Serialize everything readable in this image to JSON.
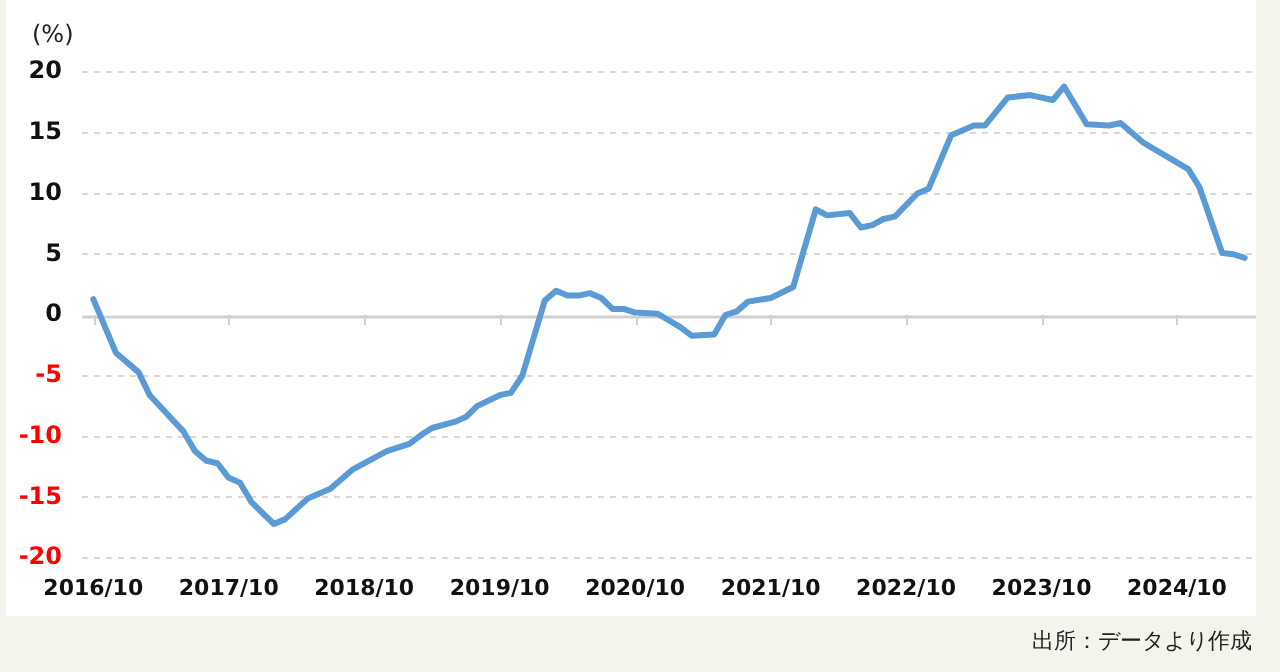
{
  "chart_data": {
    "type": "line",
    "ylabel": "(%)",
    "annotations": [
      "出所：データより作成"
    ],
    "x": [
      "2016-10",
      "2016-12",
      "2017-02",
      "2017-03",
      "2017-06",
      "2017-07",
      "2017-08",
      "2017-09",
      "2017-10",
      "2017-11",
      "2017-12",
      "2018-02",
      "2018-03",
      "2018-05",
      "2018-07",
      "2018-09",
      "2018-12",
      "2019-02",
      "2019-03",
      "2019-04",
      "2019-06",
      "2019-07",
      "2019-08",
      "2019-10",
      "2019-11",
      "2019-12",
      "2020-02",
      "2020-03",
      "2020-04",
      "2020-05",
      "2020-06",
      "2020-07",
      "2020-08",
      "2020-09",
      "2020-10",
      "2020-12",
      "2021-02",
      "2021-03",
      "2021-05",
      "2021-06",
      "2021-07",
      "2021-08",
      "2021-10",
      "2021-12",
      "2022-02",
      "2022-03",
      "2022-05",
      "2022-06",
      "2022-07",
      "2022-08",
      "2022-09",
      "2022-11",
      "2022-12",
      "2023-02",
      "2023-04",
      "2023-05",
      "2023-07",
      "2023-09",
      "2023-11",
      "2023-12",
      "2024-02",
      "2024-04",
      "2024-05",
      "2024-07",
      "2024-09",
      "2024-11",
      "2024-12",
      "2025-02",
      "2025-03",
      "2025-04"
    ],
    "series": [
      {
        "color": "#5b9bd5",
        "values": [
          1.3,
          -3.1,
          -4.7,
          -6.6,
          -9.6,
          -11.2,
          -12.0,
          -12.2,
          -13.4,
          -13.8,
          -15.4,
          -17.2,
          -16.8,
          -15.1,
          -14.3,
          -12.7,
          -11.2,
          -10.6,
          -9.9,
          -9.3,
          -8.8,
          -8.4,
          -7.5,
          -6.6,
          -6.4,
          -5.0,
          1.2,
          2.0,
          1.6,
          1.6,
          1.8,
          1.4,
          0.5,
          0.5,
          0.2,
          0.1,
          -1.0,
          -1.7,
          -1.6,
          0.0,
          0.3,
          1.1,
          1.4,
          2.3,
          8.7,
          8.2,
          8.4,
          7.2,
          7.4,
          7.9,
          8.1,
          10.0,
          10.4,
          14.8,
          15.6,
          15.6,
          17.9,
          18.1,
          17.7,
          18.8,
          15.7,
          15.6,
          15.8,
          14.2,
          13.1,
          12.0,
          10.5,
          5.1,
          5.0,
          4.7
        ]
      }
    ],
    "xlim": [
      "2016-09",
      "2025-05"
    ],
    "xticks": [
      {
        "value": "2016-10",
        "label": "2016/10"
      },
      {
        "value": "2017-10",
        "label": "2017/10"
      },
      {
        "value": "2018-10",
        "label": "2018/10"
      },
      {
        "value": "2019-10",
        "label": "2019/10"
      },
      {
        "value": "2020-10",
        "label": "2020/10"
      },
      {
        "value": "2021-10",
        "label": "2021/10"
      },
      {
        "value": "2022-10",
        "label": "2022/10"
      },
      {
        "value": "2023-10",
        "label": "2023/10"
      },
      {
        "value": "2024-10",
        "label": "2024/10"
      }
    ],
    "ylim": [
      -20,
      20
    ],
    "yticks": [
      -20,
      -15,
      -10,
      -5,
      0,
      5,
      10,
      15,
      20
    ],
    "grid": "y",
    "legend": false,
    "marker": "none",
    "line_style": "solid"
  }
}
